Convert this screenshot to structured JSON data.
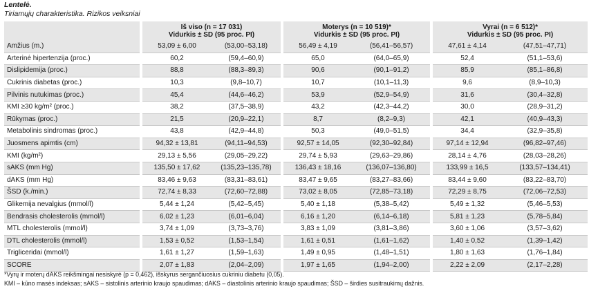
{
  "caption": {
    "title": "Lentelė.",
    "subtitle": "Tiriamųjų charakteristika. Rizikos veiksniai"
  },
  "groups": [
    {
      "title": "Iš viso (n = 17 031)",
      "subtitle": "Vidurkis ± SD (95 proc. PI)"
    },
    {
      "title": "Moterys (n = 10 519)*",
      "subtitle": "Vidurkis ± SD (95 proc. PI)"
    },
    {
      "title": "Vyrai (n = 6 512)*",
      "subtitle": "Vidurkis ± SD (95 proc. PI)"
    }
  ],
  "rows": [
    {
      "label": "Amžius (m.)",
      "cells": [
        [
          "53,09 ± 6,00",
          "(53,00–53,18)"
        ],
        [
          "56,49 ± 4,19",
          "(56,41–56,57)"
        ],
        [
          "47,61 ± 4,14",
          "(47,51–47,71)"
        ]
      ]
    },
    {
      "label": "Arterinė hipertenzija (proc.)",
      "cells": [
        [
          "60,2",
          "(59,4–60,9)"
        ],
        [
          "65,0",
          "(64,0–65,9)"
        ],
        [
          "52,4",
          "(51,1–53,6)"
        ]
      ]
    },
    {
      "label": "Dislipidemija (proc.)",
      "cells": [
        [
          "88,8",
          "(88,3–89,3)"
        ],
        [
          "90,6",
          "(90,1–91,2)"
        ],
        [
          "85,9",
          "(85,1–86,8)"
        ]
      ]
    },
    {
      "label": "Cukrinis diabetas (proc.)",
      "cells": [
        [
          "10,3",
          "(9,8–10,7)"
        ],
        [
          "10,7",
          "(10,1–11,3)"
        ],
        [
          "9,6",
          "(8,9–10,3)"
        ]
      ]
    },
    {
      "label": "Pilvinis nutukimas (proc.)",
      "cells": [
        [
          "45,4",
          "(44,6–46,2)"
        ],
        [
          "53,9",
          "(52,9–54,9)"
        ],
        [
          "31,6",
          "(30,4–32,8)"
        ]
      ]
    },
    {
      "label": "KMI ≥30 kg/m² (proc.)",
      "cells": [
        [
          "38,2",
          "(37,5–38,9)"
        ],
        [
          "43,2",
          "(42,3–44,2)"
        ],
        [
          "30,0",
          "(28,9–31,2)"
        ]
      ]
    },
    {
      "label": "Rūkymas (proc.)",
      "cells": [
        [
          "21,5",
          "(20,9–22,1)"
        ],
        [
          "8,7",
          "(8,2–9,3)"
        ],
        [
          "42,1",
          "(40,9–43,3)"
        ]
      ]
    },
    {
      "label": "Metabolinis sindromas (proc.)",
      "cells": [
        [
          "43,8",
          "(42,9–44,8)"
        ],
        [
          "50,3",
          "(49,0–51,5)"
        ],
        [
          "34,4",
          "(32,9–35,8)"
        ]
      ]
    },
    {
      "label": "Juosmens apimtis (cm)",
      "cells": [
        [
          "94,32 ± 13,81",
          "(94,11–94,53)"
        ],
        [
          "92,57 ± 14,05",
          "(92,30–92,84)"
        ],
        [
          "97,14 ± 12,94",
          "(96,82–97,46)"
        ]
      ]
    },
    {
      "label": "KMI (kg/m²)",
      "cells": [
        [
          "29,13 ± 5,56",
          "(29,05–29,22)"
        ],
        [
          "29,74 ± 5,93",
          "(29,63–29,86)"
        ],
        [
          "28,14 ± 4,76",
          "(28,03–28,26)"
        ]
      ]
    },
    {
      "label": "sAKS (mm Hg)",
      "cells": [
        [
          "135,50 ± 17,62",
          "(135,23–135,78)"
        ],
        [
          "136,43 ± 18,16",
          "(136,07–136,80)"
        ],
        [
          "133,99 ± 16,5",
          "(133,57–134,41)"
        ]
      ]
    },
    {
      "label": "dAKS (mm Hg)",
      "cells": [
        [
          "83,46 ± 9,63",
          "(83,31–83,61)"
        ],
        [
          "83,47 ± 9,65",
          "(83,27–83,66)"
        ],
        [
          "83,44 ± 9,60",
          "(83,22–83,70)"
        ]
      ]
    },
    {
      "label": "ŠSD (k./min.)",
      "cells": [
        [
          "72,74 ± 8,33",
          "(72,60–72,88)"
        ],
        [
          "73,02 ± 8,05",
          "(72,85–73,18)"
        ],
        [
          "72,29 ± 8,75",
          "(72,06–72,53)"
        ]
      ]
    },
    {
      "label": "Glikemija nevalgius (mmol/l)",
      "cells": [
        [
          "5,44 ± 1,24",
          "(5,42–5,45)"
        ],
        [
          "5,40 ± 1,18",
          "(5,38–5,42)"
        ],
        [
          "5,49 ± 1,32",
          "(5,46–5,53)"
        ]
      ]
    },
    {
      "label": "Bendrasis cholesterolis (mmol/l)",
      "cells": [
        [
          "6,02 ± 1,23",
          "(6,01–6,04)"
        ],
        [
          "6,16 ± 1,20",
          "(6,14–6,18)"
        ],
        [
          "5,81 ± 1,23",
          "(5,78–5,84)"
        ]
      ]
    },
    {
      "label": "MTL cholesterolis (mmol/l)",
      "cells": [
        [
          "3,74 ± 1,09",
          "(3,73–3,76)"
        ],
        [
          "3,83 ± 1,09",
          "(3,81–3,86)"
        ],
        [
          "3,60 ± 1,06",
          "(3,57–3,62)"
        ]
      ]
    },
    {
      "label": "DTL cholesterolis (mmol/l)",
      "cells": [
        [
          "1,53 ± 0,52",
          "(1,53–1,54)"
        ],
        [
          "1,61 ± 0,51",
          "(1,61–1,62)"
        ],
        [
          "1,40 ± 0,52",
          "(1,39–1,42)"
        ]
      ]
    },
    {
      "label": "Trigliceridai (mmol/l)",
      "cells": [
        [
          "1,61 ± 1,27",
          "(1,59–1,63)"
        ],
        [
          "1,49 ± 0,95",
          "(1,48–1,51)"
        ],
        [
          "1,80 ± 1,63",
          "(1,76–1,84)"
        ]
      ]
    },
    {
      "label": "SCORE",
      "cells": [
        [
          "2,07 ± 1,83",
          "(2,04–2,09)"
        ],
        [
          "1,97 ± 1,65",
          "(1,94–2,00)"
        ],
        [
          "2,22 ± 2,09",
          "(2,17–2,28)"
        ]
      ]
    }
  ],
  "footnotes": [
    "*Vyrų ir moterų dAKS reikšmingai nesiskyrė (p = 0,462), išskyrus sergančiuosius cukriniu diabetu (0,05).",
    "KMI – kūno masės indeksas; sAKS – sistolinis arterinio kraujo spaudimas; dAKS – diastolinis arterinio kraujo spaudimas; ŠSD – širdies susitraukimų dažnis."
  ]
}
